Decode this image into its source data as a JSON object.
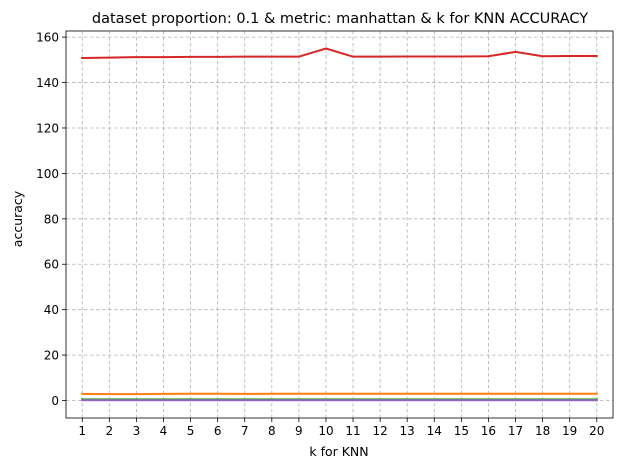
{
  "chart_data": {
    "type": "line",
    "title": "dataset proportion: 0.1 & metric: manhattan & k for KNN ACCURACY",
    "xlabel": "k for KNN",
    "ylabel": "accuracy",
    "x": [
      1,
      2,
      3,
      4,
      5,
      6,
      7,
      8,
      9,
      10,
      11,
      12,
      13,
      14,
      15,
      16,
      17,
      18,
      19,
      20
    ],
    "xticks": [
      "1",
      "2",
      "3",
      "4",
      "5",
      "6",
      "7",
      "8",
      "9",
      "10",
      "11",
      "12",
      "13",
      "14",
      "15",
      "16",
      "17",
      "18",
      "19",
      "20"
    ],
    "yticks": [
      "0",
      "20",
      "40",
      "60",
      "80",
      "100",
      "120",
      "140",
      "160"
    ],
    "ylim": [
      -7.7,
      162.7
    ],
    "xlim": [
      0.4,
      20.6
    ],
    "grid": true,
    "series": [
      {
        "color": "#1f77b4",
        "values": [
          0.3,
          0.3,
          0.3,
          0.3,
          0.3,
          0.3,
          0.3,
          0.3,
          0.3,
          0.3,
          0.3,
          0.3,
          0.3,
          0.3,
          0.3,
          0.3,
          0.3,
          0.3,
          0.3,
          0.3
        ]
      },
      {
        "color": "#ff7f0e",
        "values": [
          2.9,
          2.8,
          2.8,
          2.9,
          3.0,
          3.0,
          2.9,
          3.0,
          3.0,
          3.0,
          3.0,
          3.0,
          3.0,
          3.0,
          3.0,
          3.0,
          3.0,
          3.0,
          3.0,
          3.0
        ]
      },
      {
        "color": "#2ca02c",
        "values": [
          0.5,
          0.5,
          0.5,
          0.5,
          0.5,
          0.5,
          0.5,
          0.5,
          0.5,
          0.5,
          0.5,
          0.5,
          0.5,
          0.5,
          0.5,
          0.5,
          0.5,
          0.5,
          0.5,
          0.5
        ]
      },
      {
        "color": "#d62728",
        "values": [
          150.8,
          151.0,
          151.2,
          151.2,
          151.3,
          151.3,
          151.4,
          151.4,
          151.4,
          155.0,
          151.4,
          151.4,
          151.5,
          151.5,
          151.5,
          151.6,
          153.5,
          151.6,
          151.7,
          151.7
        ]
      },
      {
        "color": "#9467bd",
        "values": [
          0.1,
          0.1,
          0.1,
          0.1,
          0.1,
          0.1,
          0.1,
          0.1,
          0.1,
          0.1,
          0.1,
          0.1,
          0.1,
          0.1,
          0.1,
          0.1,
          0.1,
          0.1,
          0.1,
          0.1
        ]
      }
    ]
  }
}
